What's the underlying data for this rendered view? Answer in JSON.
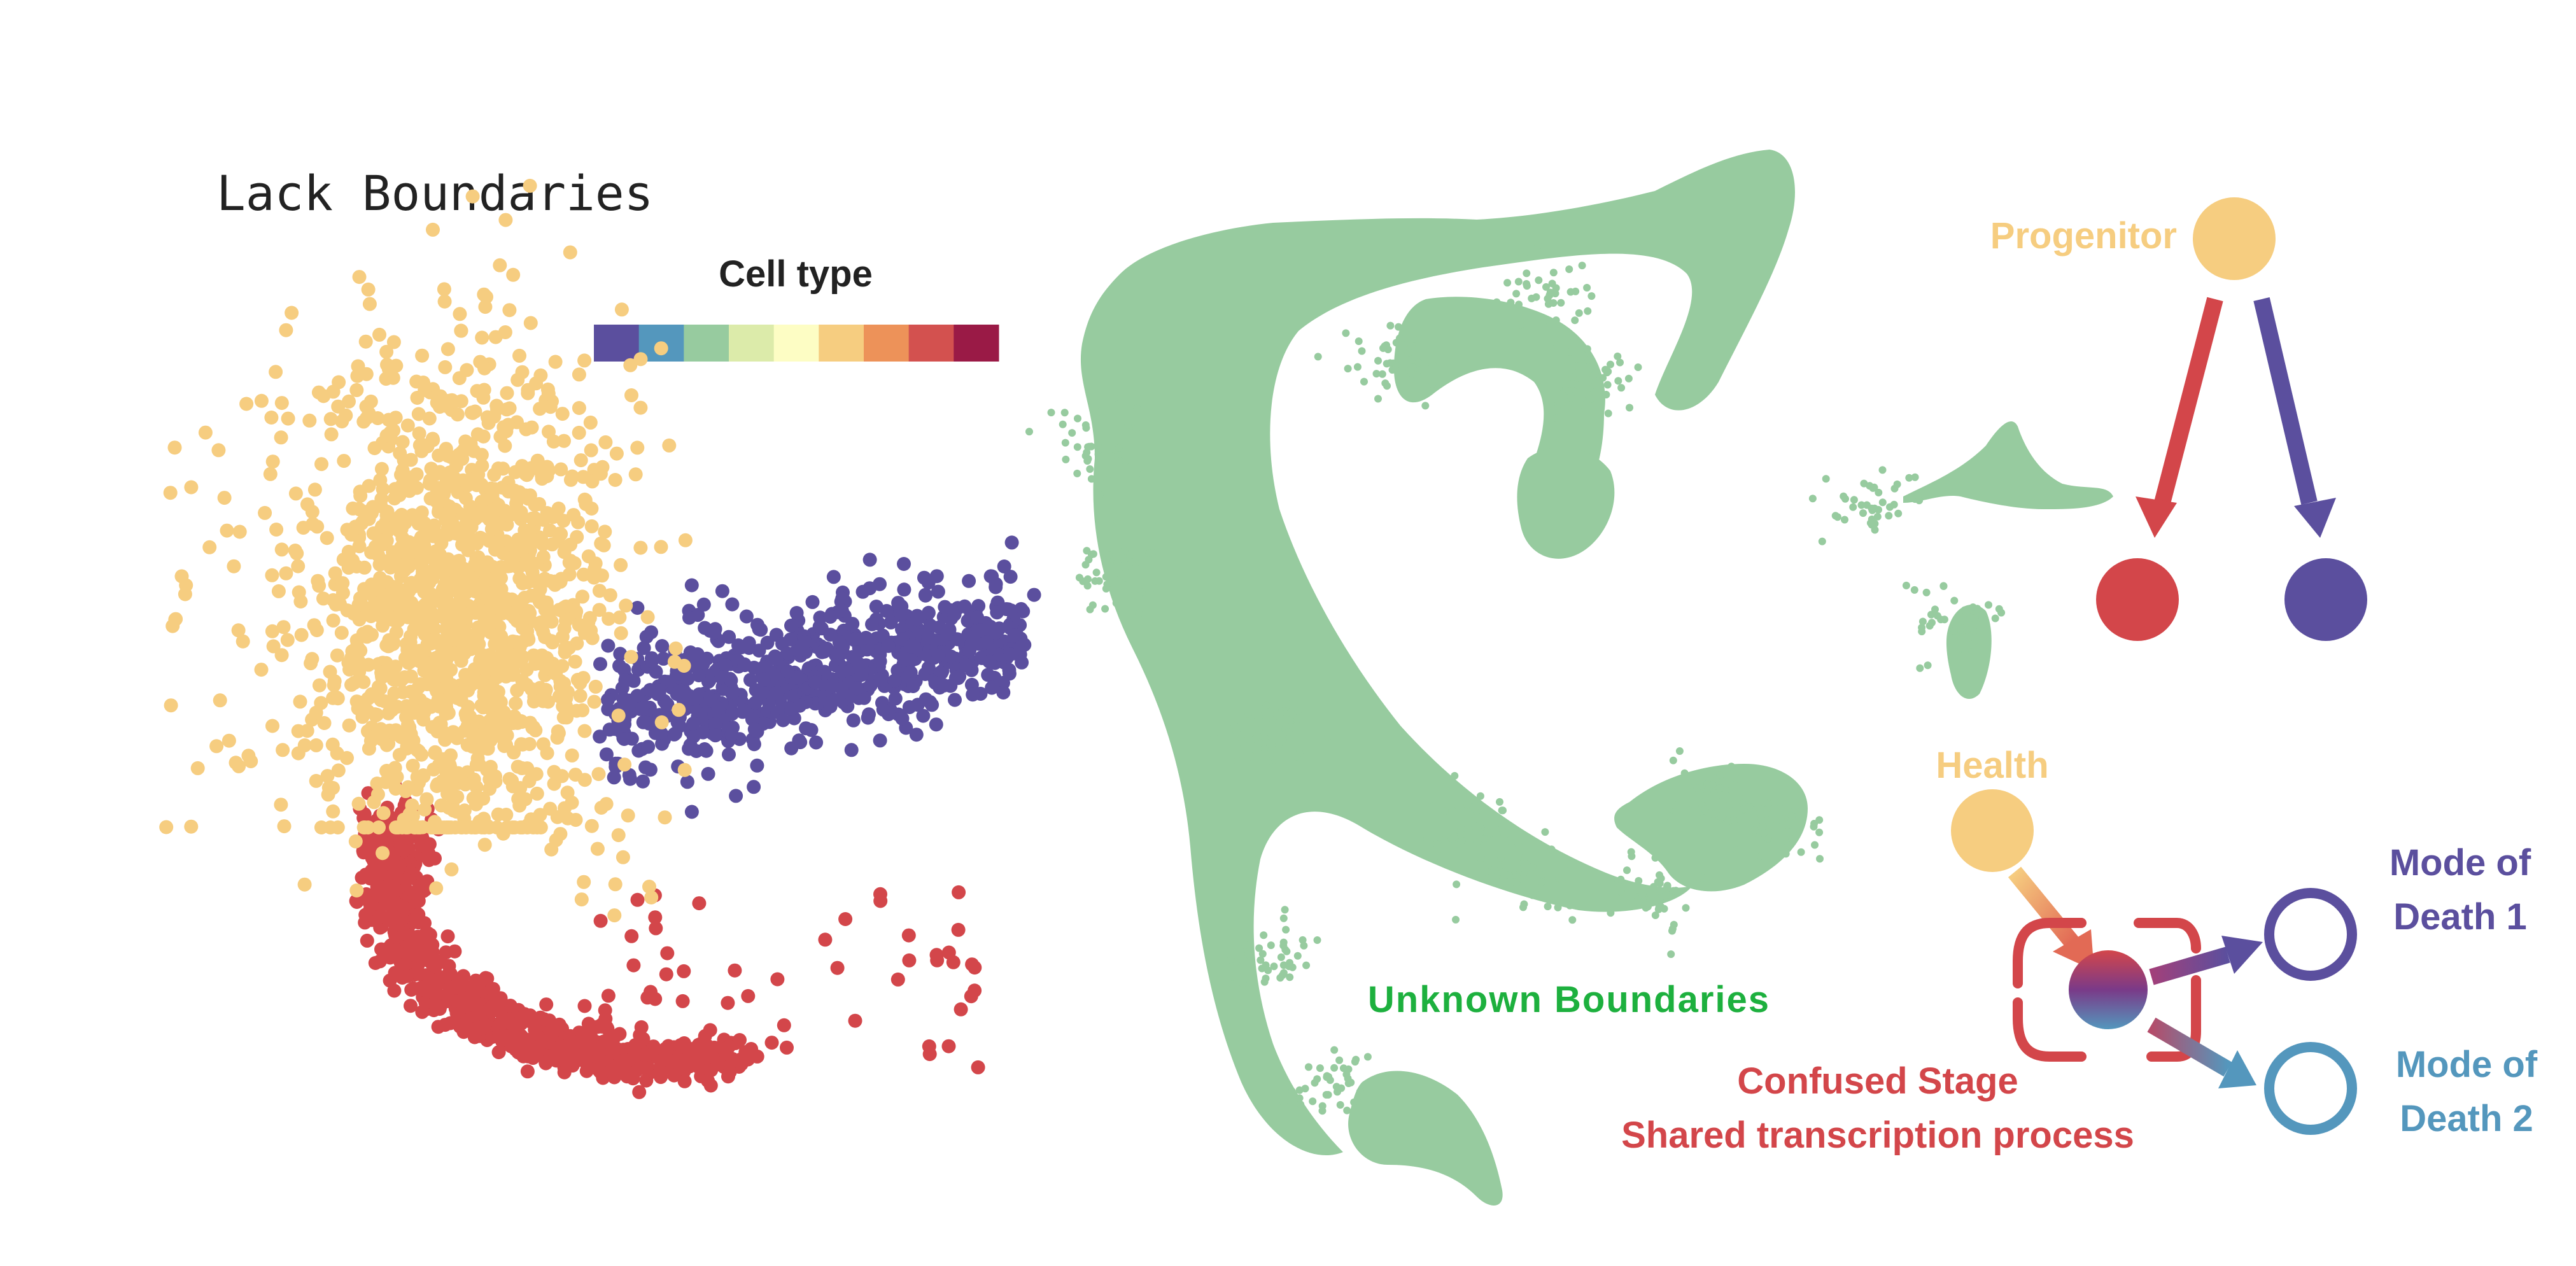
{
  "left_panel": {
    "title": "Lack Boundaries",
    "colorbar_title": "Cell type",
    "colorbar_colors": [
      "#5b4f9e",
      "#5497bd",
      "#97cb9f",
      "#dcebaa",
      "#fdfdc4",
      "#f6cd80",
      "#ed9259",
      "#d3514f",
      "#9a1a46"
    ],
    "cluster_colors": {
      "progenitor": "#f6cd80",
      "mode1": "#5b4f9e",
      "mode2": "#d3464a"
    }
  },
  "middle_panel": {
    "label": "Unknown Boundaries",
    "label_color": "#1db03e",
    "cloud_color": "#97cb9f"
  },
  "right_panel": {
    "top": {
      "progenitor_label": "Progenitor",
      "progenitor_color": "#f6cd80",
      "arrow_left_color": "#d3464a",
      "arrow_right_color": "#5b4f9e"
    },
    "bottom": {
      "health_label": "Health",
      "health_color": "#f6cd80",
      "confused_label_line1": "Confused Stage",
      "confused_label_line2": "Shared transcription process",
      "confused_color": "#d3464a",
      "mode1_line1": "Mode of",
      "mode1_line2": "Death 1",
      "mode1_color": "#5b4f9e",
      "mode2_line1": "Mode of",
      "mode2_line2": "Death 2",
      "mode2_color": "#5497bd"
    }
  }
}
